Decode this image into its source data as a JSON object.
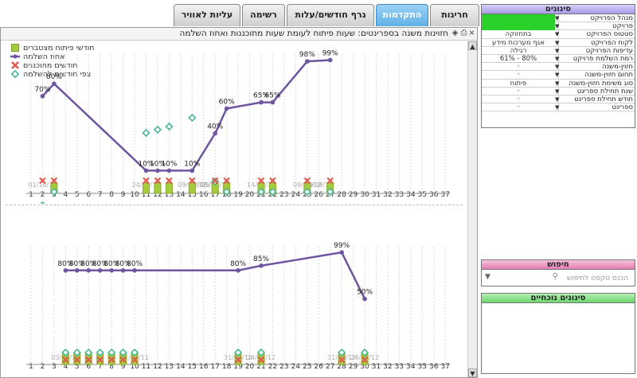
{
  "tabs": [
    {
      "label": "עליות לאוויר",
      "active": false
    },
    {
      "label": "רשימה",
      "active": false
    },
    {
      "label": "גרף חודשים/עלות",
      "active": false
    },
    {
      "label": "התקדמות",
      "active": true
    },
    {
      "label": "חריגות",
      "active": false
    }
  ],
  "toolbar": {
    "title": "חזוינות משנה בספרינטים: שעות פיתוח לעומת שעות מתוכננות ואחוז השלמה"
  },
  "legend": [
    {
      "label": "חודשי פיתוח מצטברים",
      "icon": "green-square-icon",
      "color": "#a5cc3c"
    },
    {
      "label": "אחוז השלמה",
      "icon": "purple-line-icon",
      "color": "#6e55a0"
    },
    {
      "label": "חודשים מתוכננים",
      "icon": "red-x-icon",
      "color": "#e2594e"
    },
    {
      "label": "צפי חודשים להשלמה",
      "icon": "teal-diamond-icon",
      "color": "#4cb69a"
    }
  ],
  "filters": {
    "title": "סינונים",
    "rows": [
      {
        "label": "מנהל הפרויקט",
        "value": "",
        "green": true
      },
      {
        "label": "פרויקט",
        "value": "",
        "green": true
      },
      {
        "label": "סטטוס הפרויקט",
        "value": "בתחזוקה",
        "green": false
      },
      {
        "label": "לקוח הפרויקט",
        "value": "אגף מערכות מידע",
        "green": false
      },
      {
        "label": "עדיפות הפרויקט",
        "value": "רגילה",
        "green": false
      },
      {
        "label": "רמת השלמת פרויקט",
        "value": "61% - 80%",
        "green": false
      },
      {
        "label": "חזוין-משנה",
        "value": "◦",
        "green": false
      },
      {
        "label": "תחום חזוין-משנה",
        "value": "◦",
        "green": false
      },
      {
        "label": "סוג משימת חזוין-משנה",
        "value": "פיתוח",
        "green": false
      },
      {
        "label": "שנת תחילת ספרינט",
        "value": "◦",
        "green": false
      },
      {
        "label": "חודש תחילת ספרינט",
        "value": "◦",
        "green": false
      },
      {
        "label": "ספרינט",
        "value": "◦",
        "green": false
      }
    ]
  },
  "search": {
    "title": "חיפוש",
    "placeholder": "הכנס טקסט לחיפוש"
  },
  "current_filters": {
    "title": "סינונים נוכחיים"
  },
  "chart_data": [
    {
      "type": "line",
      "title": "",
      "xlabel": "",
      "ylabel": "",
      "x_ticks": [
        1,
        2,
        3,
        4,
        5,
        6,
        7,
        8,
        9,
        10,
        11,
        12,
        13,
        14,
        15,
        16,
        17,
        18,
        19,
        20,
        21,
        22,
        23,
        24,
        25,
        26,
        27,
        28,
        29,
        30,
        31,
        32,
        33,
        34,
        35,
        36,
        37
      ],
      "series": [
        {
          "name": "אחוז השלמה",
          "x": [
            2,
            3,
            11,
            12,
            13,
            15,
            17,
            18,
            21,
            22,
            25,
            27
          ],
          "values": [
            70,
            80,
            10,
            10,
            10,
            10,
            40,
            60,
            65,
            65,
            98,
            99
          ],
          "labels": [
            "70%",
            "80%",
            "10%",
            "10%",
            "10%",
            "10%",
            "40%",
            "60%",
            "65%",
            "65%",
            "98%",
            "99%"
          ]
        },
        {
          "name": "חודשי פיתוח מצטברים",
          "x": [
            3,
            11,
            12,
            13,
            15,
            17,
            18,
            21,
            22,
            25,
            27
          ]
        },
        {
          "name": "חודשים מתוכננים",
          "x": [
            2,
            3,
            11,
            12,
            13,
            15,
            17,
            18,
            21,
            22,
            25,
            27
          ]
        },
        {
          "name": "צפי חודשים להשלמה",
          "x": [
            2,
            3,
            11,
            12,
            13,
            15,
            17,
            18,
            21,
            22,
            25,
            27
          ],
          "upper_x": [
            11,
            12,
            13,
            15,
            17
          ]
        }
      ],
      "date_labels": [
        {
          "x": 2,
          "text": "01/10/11"
        },
        {
          "x": 11,
          "text": "24/10/11"
        },
        {
          "x": 15,
          "text": "09/04/12"
        },
        {
          "x": 16,
          "text": "22/03/12"
        },
        {
          "x": 17,
          "text": "05/03/12"
        },
        {
          "x": 21,
          "text": "14/06/12"
        },
        {
          "x": 25,
          "text": "09/08/12"
        },
        {
          "x": 26,
          "text": "20/09/12"
        }
      ]
    },
    {
      "type": "line",
      "title": "",
      "xlabel": "",
      "ylabel": "",
      "x_ticks": [
        1,
        2,
        3,
        4,
        5,
        6,
        7,
        8,
        9,
        10,
        11,
        12,
        13,
        14,
        15,
        16,
        17,
        18,
        19,
        20,
        21,
        22,
        23,
        24,
        25,
        26,
        27,
        28,
        29,
        30,
        31,
        32,
        33,
        34,
        35,
        36,
        37
      ],
      "series": [
        {
          "name": "אחוז השלמה",
          "x": [
            4,
            5,
            6,
            7,
            8,
            9,
            10,
            19,
            21,
            28,
            30
          ],
          "values": [
            80,
            80,
            80,
            80,
            80,
            80,
            80,
            80,
            85,
            99,
            50
          ],
          "labels": [
            "80%",
            "80%",
            "80%",
            "80%",
            "80%",
            "80%",
            "80%",
            "80%",
            "85%",
            "99%",
            "50%"
          ]
        },
        {
          "name": "חודשי פיתוח מצטברים",
          "x": [
            4,
            5,
            6,
            7,
            8,
            9,
            10,
            19,
            21,
            28,
            30
          ]
        },
        {
          "name": "חודשים מתוכננים",
          "x": [
            4,
            5,
            6,
            7,
            8,
            9,
            10,
            19,
            21,
            28,
            30
          ]
        },
        {
          "name": "צפי חודשים להשלמה",
          "x": [
            4,
            5,
            6,
            7,
            8,
            9,
            10,
            19,
            21,
            28,
            30
          ]
        }
      ],
      "date_labels": [
        {
          "x": 4,
          "text": "03/04/12"
        },
        {
          "x": 10,
          "text": "01/11/11"
        },
        {
          "x": 19,
          "text": "31/05/12"
        },
        {
          "x": 21,
          "text": "24/06/12"
        },
        {
          "x": 28,
          "text": "31/10/12"
        },
        {
          "x": 30,
          "text": "24/11/12"
        }
      ]
    }
  ]
}
